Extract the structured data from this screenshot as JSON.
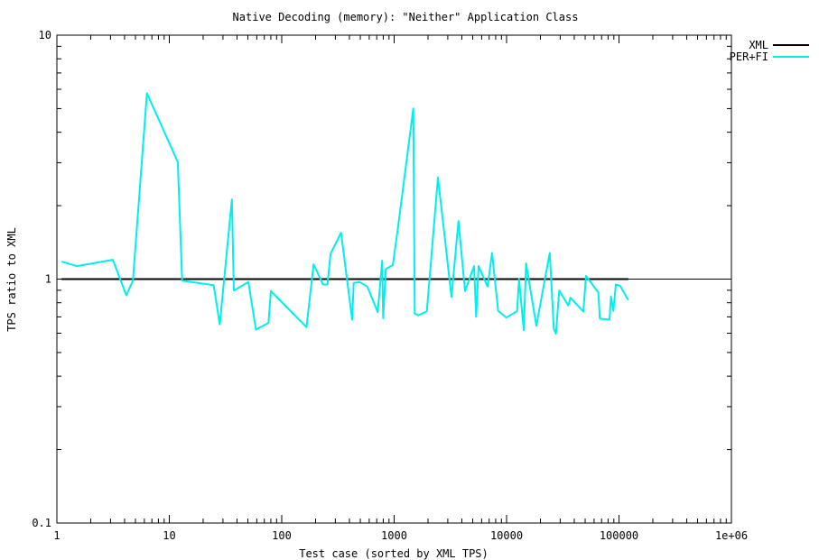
{
  "chart_data": {
    "type": "line",
    "title": "Native Decoding (memory): \"Neither\" Application Class",
    "xlabel": "Test case (sorted by XML TPS)",
    "ylabel": "TPS ratio to XML",
    "xscale": "log",
    "yscale": "log",
    "xlim": [
      1,
      1000000
    ],
    "ylim": [
      0.1,
      10
    ],
    "x_ticks": [
      {
        "value": 1,
        "label": "1"
      },
      {
        "value": 10,
        "label": "10"
      },
      {
        "value": 100,
        "label": "100"
      },
      {
        "value": 1000,
        "label": "1000"
      },
      {
        "value": 10000,
        "label": "10000"
      },
      {
        "value": 100000,
        "label": "100000"
      },
      {
        "value": 1000000,
        "label": "1e+06"
      }
    ],
    "y_ticks": [
      {
        "value": 0.1,
        "label": "0.1"
      },
      {
        "value": 1,
        "label": "1"
      },
      {
        "value": 10,
        "label": "10"
      }
    ],
    "grid": false,
    "legend_position": "top-right outside",
    "series": [
      {
        "name": "XML",
        "color": "#000000",
        "x": [
          1.1,
          121000
        ],
        "y": [
          1,
          1
        ]
      },
      {
        "name": "PER+FI",
        "color": "#00eeee",
        "x": [
          1.1,
          1.5,
          3.15,
          4.15,
          4.75,
          6.32,
          11.9,
          13.0,
          24.8,
          28.1,
          36.0,
          37.5,
          50.5,
          58.9,
          76.2,
          80.1,
          166,
          192,
          233,
          255,
          272,
          337,
          423,
          437,
          493,
          576,
          714,
          783,
          798,
          844,
          972,
          1067,
          1480,
          1525,
          1641,
          1954,
          2453,
          3236,
          3733,
          4272,
          5140,
          5360,
          5636,
          6780,
          7431,
          8420,
          9950,
          12400,
          12900,
          14200,
          14900,
          18400,
          24200,
          26300,
          27500,
          29400,
          35400,
          37000,
          48200,
          50900,
          65600,
          67600,
          82400,
          84900,
          89200,
          93800,
          102000,
          121000
        ],
        "y": [
          1.18,
          1.13,
          1.2,
          0.858,
          0.986,
          5.78,
          3.02,
          0.986,
          0.944,
          0.653,
          2.12,
          0.898,
          0.972,
          0.621,
          0.661,
          0.893,
          0.635,
          1.15,
          0.95,
          0.95,
          1.27,
          1.55,
          0.682,
          0.964,
          0.972,
          0.932,
          0.732,
          1.19,
          0.692,
          1.1,
          1.14,
          1.55,
          5.01,
          0.722,
          0.711,
          0.738,
          2.61,
          0.844,
          1.73,
          0.893,
          1.13,
          0.701,
          1.13,
          0.932,
          1.28,
          0.742,
          0.695,
          0.738,
          1.0,
          0.617,
          1.16,
          0.644,
          1.28,
          0.626,
          0.597,
          0.898,
          0.779,
          0.839,
          0.736,
          1.03,
          0.88,
          0.688,
          0.682,
          0.848,
          0.742,
          0.95,
          0.94,
          0.82
        ]
      }
    ]
  }
}
